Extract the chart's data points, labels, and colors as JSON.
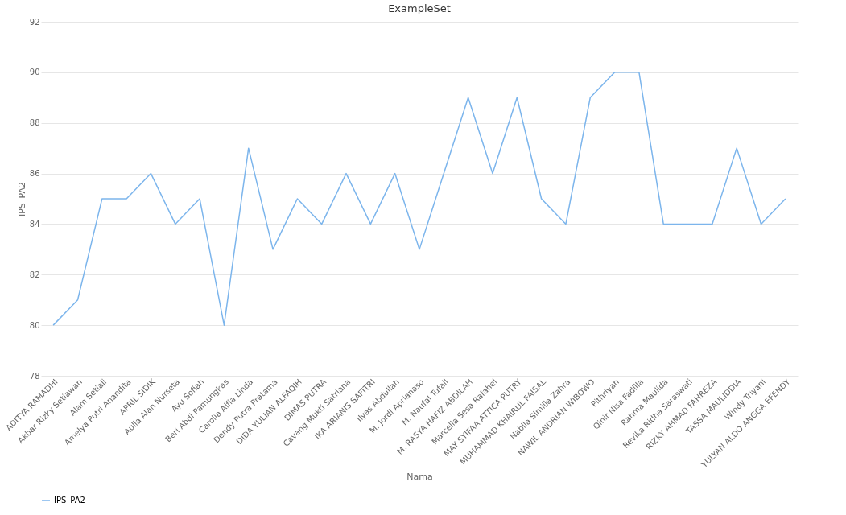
{
  "chart_data": {
    "type": "line",
    "title": "ExampleSet",
    "xlabel": "Nama",
    "ylabel": "IPS_PA2",
    "categories": [
      "ADITYA RAMADHI",
      "Akbar Rizky Setiawan",
      "Alam Setiaji",
      "Amelya Putri Anandita",
      "APRIL SIDIK",
      "Aulia Alan Nurseta",
      "Ayu Sofiah",
      "Beri Abdi Pamungkas",
      "Carolia Alfia Linda",
      "Dendy Putra Pratama",
      "DIDA YULIAN ALFAQIH",
      "DIMAS PUTRA",
      "Cavang Mukti Satriana",
      "IKA ARIANIS SAFITRI",
      "Ilyas Abdullah",
      "M. Jordi Aprianaso",
      "M. Naufal Tufail",
      "M. RASYA HAFIZ ABDILAH",
      "Marcella Sesa Rafahel",
      "MAY SYIFAA ATTICA PUTRY",
      "MUHAMMAD KHAIRUL FAISAL",
      "Nabila Similla Zahra",
      "NAWIL ANDRIAN WIBOWO",
      "Pithriyah",
      "Qinir Nisa Fadilla",
      "Rahma Maulida",
      "Revika Ridha Saraswati",
      "RIZKY AHMAD FAHREZA",
      "TASSA MAULIDDIA",
      "Windy Triyani",
      "YULYAN ALDO ANGGA EFENDY"
    ],
    "series": [
      {
        "name": "IPS_PA2",
        "color": "#7cb5ec",
        "values": [
          80,
          81,
          85,
          85,
          86,
          84,
          85,
          80,
          87,
          83,
          85,
          84,
          86,
          84,
          86,
          83,
          86,
          89,
          86,
          89,
          85,
          84,
          89,
          90,
          90,
          84,
          84,
          84,
          87,
          84,
          85
        ]
      }
    ],
    "ylim": [
      78,
      92
    ],
    "yticks": [
      78,
      80,
      82,
      84,
      86,
      88,
      90,
      92
    ],
    "grid": "y",
    "legend": "bottom",
    "marker": "none",
    "line_style": "solid"
  }
}
